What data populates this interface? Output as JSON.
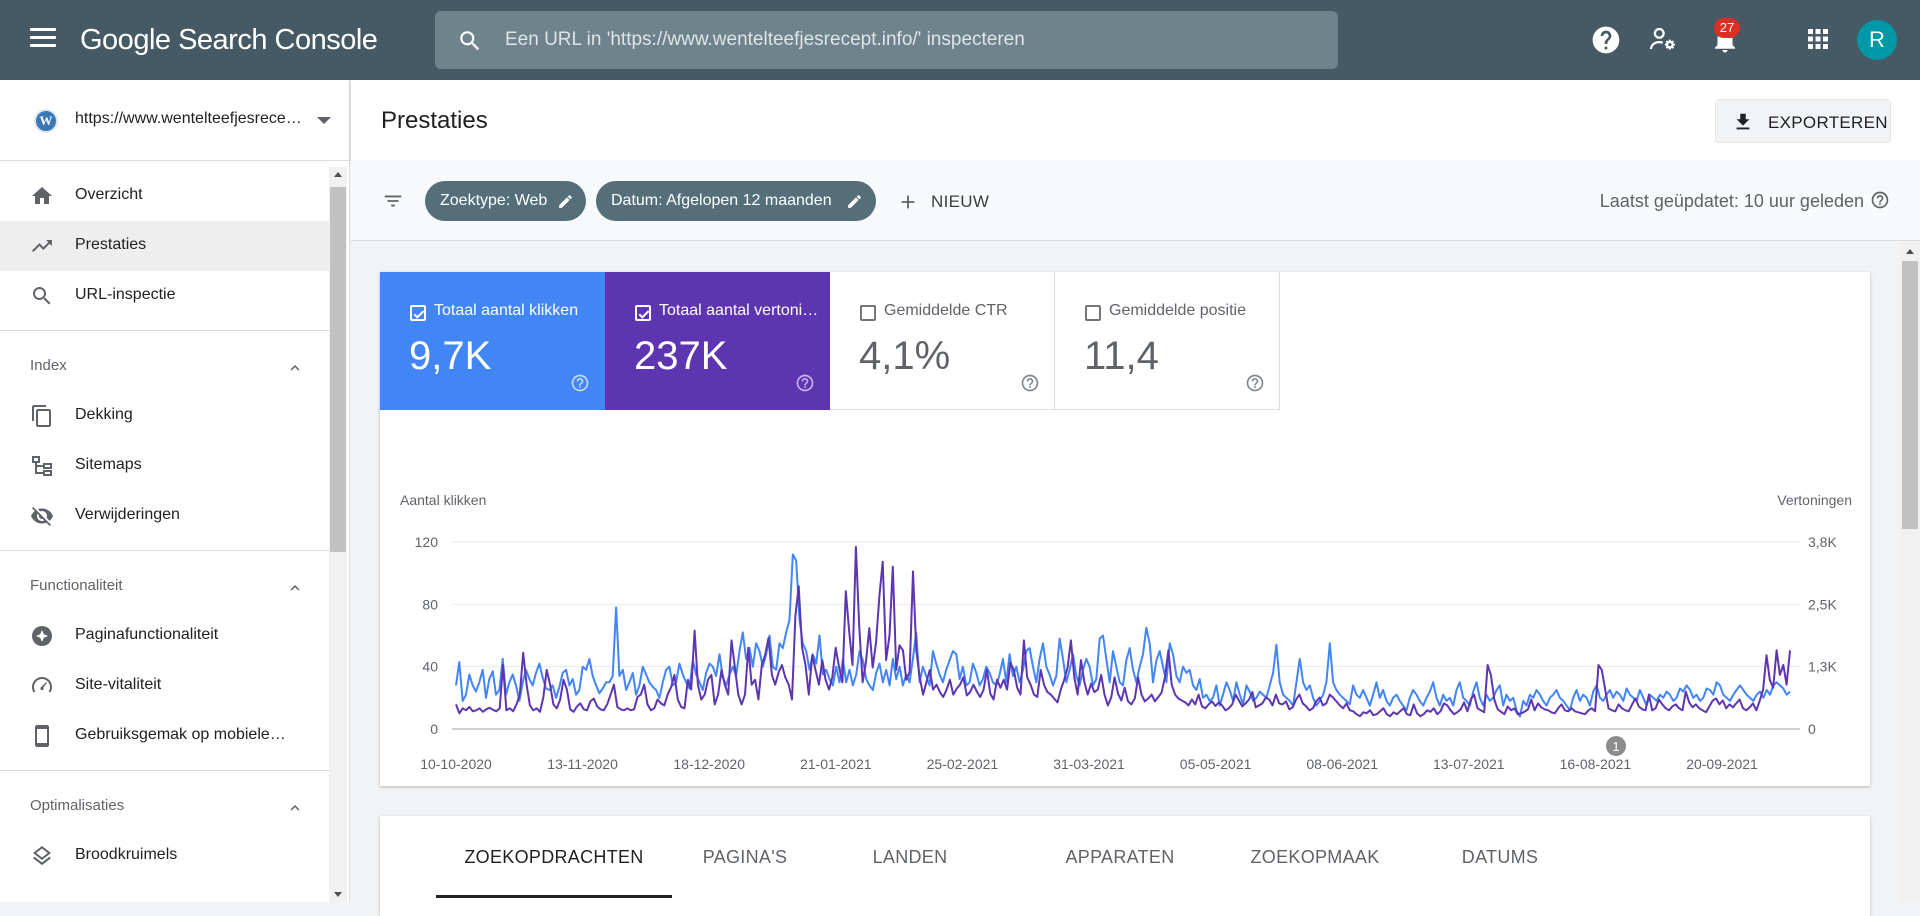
{
  "app": {
    "name_google": "Google",
    "name_product": "Search Console",
    "search_placeholder": "Een URL in 'https://www.wentelteefjesrecept.info/' inspecteren",
    "notification_count": "27",
    "avatar_letter": "R"
  },
  "sidebar": {
    "property_url": "https://www.wentelteefjesrecept.info/",
    "items_top": [
      {
        "label": "Overzicht"
      },
      {
        "label": "Prestaties"
      },
      {
        "label": "URL-inspectie"
      }
    ],
    "sections": [
      {
        "title": "Index",
        "items": [
          {
            "label": "Dekking"
          },
          {
            "label": "Sitemaps"
          },
          {
            "label": "Verwijderingen"
          }
        ]
      },
      {
        "title": "Functionaliteit",
        "items": [
          {
            "label": "Paginafunctionaliteit"
          },
          {
            "label": "Site-vitaliteit"
          },
          {
            "label": "Gebruiksgemak op mobiele apparaten"
          }
        ]
      },
      {
        "title": "Optimalisaties",
        "items": [
          {
            "label": "Broodkruimels"
          }
        ]
      }
    ]
  },
  "page": {
    "title": "Prestaties",
    "export_label": "EXPORTEREN"
  },
  "filters": {
    "chips": [
      {
        "label": "Zoektype: Web"
      },
      {
        "label": "Datum: Afgelopen 12 maanden"
      }
    ],
    "new_label": "NIEUW",
    "last_updated": "Laatst geüpdatet: 10 uur geleden"
  },
  "metrics": [
    {
      "label": "Totaal aantal klikken",
      "value": "9,7K",
      "checked": true,
      "color": "#4285f4"
    },
    {
      "label": "Totaal aantal vertoningen",
      "value": "237K",
      "checked": true,
      "color": "#5e35b1"
    },
    {
      "label": "Gemiddelde CTR",
      "value": "4,1%",
      "checked": false
    },
    {
      "label": "Gemiddelde positie",
      "value": "11,4",
      "checked": false
    }
  ],
  "chart_data": {
    "type": "line",
    "ylabel": "Aantal klikken",
    "y2label": "Vertoningen",
    "ylim": [
      0,
      120
    ],
    "y2lim": [
      0,
      3800
    ],
    "yticks": [
      "0",
      "40",
      "80",
      "120"
    ],
    "y2ticks": [
      "0",
      "1,3K",
      "2,5K",
      "3,8K"
    ],
    "xticks": [
      "10-10-2020",
      "13-11-2020",
      "18-12-2020",
      "21-01-2021",
      "25-02-2021",
      "31-03-2021",
      "05-05-2021",
      "08-06-2021",
      "13-07-2021",
      "16-08-2021",
      "20-09-2021"
    ],
    "annotation": "1",
    "series": [
      {
        "color": "#4285f4",
        "axis": "left",
        "values": [
          28,
          43,
          18,
          22,
          35,
          28,
          24,
          30,
          38,
          20,
          32,
          37,
          22,
          25,
          45,
          22,
          30,
          35,
          28,
          18,
          30,
          38,
          32,
          28,
          36,
          42,
          33,
          26,
          25,
          28,
          20,
          27,
          36,
          38,
          28,
          32,
          22,
          25,
          40,
          38,
          45,
          34,
          28,
          23,
          26,
          30,
          30,
          34,
          78,
          34,
          38,
          25,
          30,
          36,
          22,
          28,
          40,
          35,
          30,
          27,
          25,
          20,
          30,
          38,
          40,
          28,
          30,
          42,
          35,
          30,
          26,
          44,
          35,
          30,
          25,
          36,
          42,
          40,
          34,
          48,
          33,
          28,
          35,
          40,
          34,
          50,
          62,
          45,
          52,
          40,
          55,
          50,
          40,
          48,
          60,
          40,
          38,
          55,
          52,
          62,
          70,
          112,
          108,
          70,
          55,
          50,
          38,
          48,
          42,
          60,
          35,
          38,
          32,
          28,
          40,
          30,
          45,
          30,
          38,
          28,
          35,
          50,
          44,
          32,
          28,
          25,
          36,
          42,
          30,
          38,
          28,
          45,
          32,
          40,
          28,
          35,
          30,
          45,
          62,
          30,
          40,
          34,
          28,
          50,
          42,
          35,
          30,
          38,
          44,
          50,
          48,
          32,
          40,
          28,
          30,
          42,
          36,
          28,
          32,
          40,
          36,
          30,
          28,
          35,
          45,
          30,
          48,
          34,
          40,
          30,
          38,
          50,
          52,
          40,
          30,
          45,
          55,
          40,
          35,
          28,
          34,
          58,
          45,
          30,
          38,
          48,
          34,
          28,
          38,
          45,
          40,
          28,
          32,
          58,
          60,
          45,
          30,
          50,
          40,
          30,
          28,
          44,
          52,
          38,
          30,
          40,
          48,
          65,
          55,
          30,
          44,
          50,
          40,
          30,
          55,
          48,
          34,
          30,
          40,
          36,
          38,
          28,
          25,
          32,
          20,
          22,
          18,
          20,
          28,
          15,
          22,
          30,
          25,
          18,
          30,
          22,
          16,
          28,
          24,
          18,
          20,
          24,
          22,
          20,
          28,
          36,
          54,
          30,
          22,
          20,
          18,
          15,
          30,
          45,
          30,
          25,
          28,
          20,
          15,
          18,
          22,
          30,
          55,
          30,
          25,
          22,
          20,
          18,
          16,
          28,
          22,
          20,
          25,
          20,
          15,
          22,
          30,
          20,
          25,
          18,
          15,
          20,
          22,
          18,
          15,
          12,
          20,
          25,
          22,
          18,
          15,
          20,
          24,
          30,
          20,
          15,
          22,
          18,
          20,
          15,
          25,
          30,
          20,
          18,
          15,
          24,
          30,
          20,
          15,
          22,
          18,
          20,
          25,
          28,
          15,
          22,
          18,
          20,
          12,
          8,
          18,
          15,
          22,
          20,
          25,
          22,
          18,
          15,
          20,
          22,
          25,
          20,
          18,
          15,
          12,
          20,
          25,
          18,
          22,
          20,
          15,
          24,
          28,
          20,
          18,
          22,
          25,
          20,
          24,
          22,
          18,
          26,
          22,
          20,
          18,
          25,
          20,
          15,
          22,
          20,
          18,
          22,
          20,
          24,
          22,
          18,
          20,
          26,
          24,
          28,
          25,
          20,
          22,
          18,
          20,
          26,
          25,
          22,
          30,
          28,
          22,
          20,
          18,
          22,
          25,
          28,
          25,
          22,
          20,
          18,
          22,
          24,
          20,
          25,
          22,
          28,
          30,
          28,
          26,
          22,
          24
        ]
      },
      {
        "color": "#5e35b1",
        "axis": "right",
        "values": [
          500,
          320,
          420,
          380,
          450,
          360,
          380,
          420,
          350,
          400,
          430,
          390,
          360,
          420,
          1300,
          380,
          420,
          360,
          500,
          700,
          1550,
          900,
          480,
          380,
          420,
          350,
          650,
          1200,
          900,
          500,
          420,
          600,
          1000,
          800,
          400,
          350,
          460,
          520,
          400,
          380,
          560,
          620,
          460,
          400,
          380,
          500,
          700,
          900,
          450,
          400,
          380,
          420,
          380,
          400,
          650,
          700,
          900,
          500,
          380,
          420,
          600,
          520,
          480,
          700,
          850,
          1100,
          600,
          450,
          420,
          1000,
          800,
          2000,
          900,
          600,
          700,
          1000,
          1100,
          500,
          700,
          1200,
          900,
          700,
          1800,
          1250,
          700,
          500,
          700,
          1650,
          900,
          1000,
          600,
          1300,
          1500,
          1850,
          1100,
          900,
          1150,
          1300,
          1050,
          900,
          600,
          2300,
          2900,
          1650,
          1300,
          700,
          1500,
          1200,
          900,
          1400,
          1000,
          800,
          1050,
          1650,
          1250,
          950,
          2800,
          2000,
          1300,
          3700,
          2100,
          950,
          1350,
          2050,
          1250,
          1750,
          2700,
          3400,
          1400,
          1900,
          3300,
          1200,
          1700,
          1600,
          1000,
          1150,
          3200,
          1600,
          1050,
          700,
          950,
          1200,
          800,
          900,
          750,
          650,
          800,
          1000,
          700,
          820,
          900,
          1050,
          680,
          750,
          900,
          760,
          650,
          800,
          1200,
          720,
          600,
          1000,
          840,
          1000,
          800,
          1350,
          1200,
          840,
          700,
          1800,
          1050,
          900,
          700,
          650,
          1200,
          900,
          750,
          700,
          620,
          540,
          800,
          1000,
          1250,
          1800,
          1050,
          700,
          1400,
          950,
          700,
          920,
          750,
          800,
          1100,
          700,
          480,
          640,
          1050,
          720,
          580,
          840,
          560,
          500,
          620,
          1050,
          700,
          560,
          620,
          700,
          560,
          650,
          740,
          1060,
          1600,
          900,
          700,
          620,
          580,
          540,
          480,
          600,
          500,
          700,
          460,
          420,
          500,
          560,
          470,
          540,
          480,
          380,
          420,
          500,
          700,
          580,
          460,
          520,
          600,
          750,
          440,
          480,
          520,
          640,
          600,
          480,
          700,
          520,
          500,
          560,
          400,
          440,
          600,
          700,
          520,
          460,
          380,
          420,
          560,
          640,
          480,
          520,
          700,
          640,
          560,
          480,
          420,
          520,
          380,
          360,
          300,
          260,
          340,
          320,
          380,
          280,
          300,
          360,
          420,
          300,
          260,
          340,
          300,
          360,
          420,
          300,
          280,
          500,
          320,
          260,
          300,
          380,
          350,
          420,
          300,
          360,
          520,
          480,
          380,
          300,
          340,
          400,
          540,
          360,
          600,
          700,
          420,
          380,
          340,
          1300,
          1100,
          600,
          400,
          350,
          300,
          460,
          380,
          420,
          300,
          320,
          350,
          400,
          600,
          380,
          520,
          440,
          400,
          380,
          340,
          320,
          420,
          500,
          380,
          360,
          420,
          360,
          340,
          320,
          300,
          380,
          420,
          360,
          1300,
          1200,
          800,
          420,
          380,
          360,
          500,
          420,
          380,
          360,
          500,
          620,
          460,
          400,
          380,
          700,
          380,
          420,
          600,
          500,
          420,
          380,
          460,
          500,
          420,
          380,
          760,
          540,
          440,
          500,
          420,
          380,
          340,
          460,
          580,
          620,
          500,
          580,
          420,
          500,
          440,
          520,
          600,
          420,
          380,
          440,
          520,
          380,
          580,
          800,
          1500,
          1000,
          840,
          1600,
          1100,
          1300,
          900,
          1600
        ]
      }
    ]
  }
}
